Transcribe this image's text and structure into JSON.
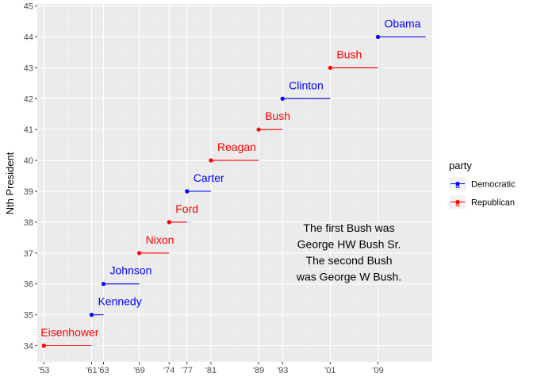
{
  "chart_data": {
    "type": "scatter",
    "ylabel": "Nth President",
    "ylim": [
      34.5,
      45
    ],
    "xlim_years": [
      1951.9,
      2018.1
    ],
    "grid": true,
    "y_ticks": [
      34,
      35,
      36,
      37,
      38,
      39,
      40,
      41,
      42,
      43,
      44,
      45
    ],
    "x_ticks": [
      {
        "year": 1953,
        "label": "'53"
      },
      {
        "year": 1961,
        "label": "'61"
      },
      {
        "year": 1963,
        "label": "'63"
      },
      {
        "year": 1969,
        "label": "'69"
      },
      {
        "year": 1974,
        "label": "'74"
      },
      {
        "year": 1977,
        "label": "'77"
      },
      {
        "year": 1981,
        "label": "'81"
      },
      {
        "year": 1989,
        "label": "'89"
      },
      {
        "year": 1993,
        "label": "'93"
      },
      {
        "year": 2001,
        "label": "'01"
      },
      {
        "year": 2009,
        "label": "'09"
      }
    ],
    "presidents": [
      {
        "name": "Eisenhower",
        "n": 34,
        "start": 1953,
        "end": 1961,
        "party": "Republican"
      },
      {
        "name": "Kennedy",
        "n": 35,
        "start": 1961,
        "end": 1963,
        "party": "Democratic"
      },
      {
        "name": "Johnson",
        "n": 36,
        "start": 1963,
        "end": 1969,
        "party": "Democratic"
      },
      {
        "name": "Nixon",
        "n": 37,
        "start": 1969,
        "end": 1974,
        "party": "Republican"
      },
      {
        "name": "Ford",
        "n": 38,
        "start": 1974,
        "end": 1977,
        "party": "Republican"
      },
      {
        "name": "Carter",
        "n": 39,
        "start": 1977,
        "end": 1981,
        "party": "Democratic"
      },
      {
        "name": "Reagan",
        "n": 40,
        "start": 1981,
        "end": 1989,
        "party": "Republican"
      },
      {
        "name": "Bush",
        "n": 41,
        "start": 1989,
        "end": 1993,
        "party": "Republican"
      },
      {
        "name": "Clinton",
        "n": 42,
        "start": 1993,
        "end": 2001,
        "party": "Democratic"
      },
      {
        "name": "Bush",
        "n": 43,
        "start": 2001,
        "end": 2009,
        "party": "Republican"
      },
      {
        "name": "Obama",
        "n": 44,
        "start": 2009,
        "end": 2017,
        "party": "Democratic"
      }
    ],
    "annotation": [
      "The first Bush was",
      "George HW Bush Sr.",
      "The second Bush",
      "was George W Bush."
    ],
    "legend": {
      "title": "party",
      "position": "right",
      "entries": [
        {
          "label": "Democratic",
          "color": "#0000ff"
        },
        {
          "label": "Republican",
          "color": "#ff0000"
        }
      ]
    },
    "colors": {
      "Democratic": "#0000ff",
      "Republican": "#ff0000",
      "panel": "#ebebeb",
      "grid_major": "#ffffff"
    }
  }
}
